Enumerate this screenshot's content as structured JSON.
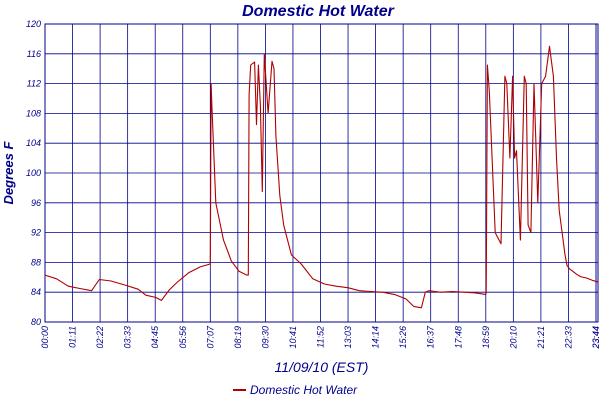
{
  "chart_data": {
    "type": "line",
    "title": "Domestic Hot Water",
    "xlabel": "11/09/10 (EST)",
    "ylabel": "Degrees F",
    "ylim": [
      80,
      120
    ],
    "y_ticks": [
      80,
      84,
      88,
      92,
      96,
      100,
      104,
      108,
      112,
      116,
      120
    ],
    "x_range_hours": [
      0,
      23.75
    ],
    "x_tick_labels": [
      "00:00",
      "01:11",
      "02:22",
      "03:33",
      "04:45",
      "05:56",
      "07:07",
      "08:19",
      "09:30",
      "10:41",
      "11:52",
      "13:03",
      "14:14",
      "15:26",
      "16:37",
      "17:48",
      "18:59",
      "20:10",
      "21:21",
      "22:33",
      "23:44",
      "23:44"
    ],
    "grid": true,
    "legend_position": "bottom-center",
    "series": [
      {
        "name": "Domestic Hot Water",
        "color": "#b00000",
        "x": [
          "00:00",
          "00:30",
          "01:00",
          "01:30",
          "02:00",
          "02:20",
          "02:50",
          "03:30",
          "04:00",
          "04:20",
          "04:45",
          "05:00",
          "05:20",
          "05:40",
          "06:10",
          "06:40",
          "07:00",
          "07:06",
          "07:08",
          "07:10",
          "07:20",
          "07:40",
          "08:00",
          "08:20",
          "08:40",
          "08:44",
          "08:46",
          "08:50",
          "09:00",
          "09:05",
          "09:10",
          "09:15",
          "09:20",
          "09:25",
          "09:35",
          "09:45",
          "09:50",
          "09:55",
          "10:05",
          "10:15",
          "10:35",
          "11:00",
          "11:30",
          "12:00",
          "12:30",
          "13:00",
          "13:30",
          "14:00",
          "14:30",
          "15:00",
          "15:30",
          "15:50",
          "16:10",
          "16:20",
          "16:30",
          "16:45",
          "17:00",
          "17:30",
          "18:00",
          "18:30",
          "18:55",
          "18:57",
          "19:00",
          "19:05",
          "19:20",
          "19:35",
          "19:45",
          "19:50",
          "19:58",
          "20:05",
          "20:10",
          "20:15",
          "20:25",
          "20:35",
          "20:40",
          "20:45",
          "20:52",
          "21:00",
          "21:10",
          "21:20",
          "21:30",
          "21:40",
          "21:50",
          "21:58",
          "22:05",
          "22:15",
          "22:20",
          "22:25",
          "22:32",
          "22:40",
          "22:50",
          "23:00",
          "23:15",
          "23:30",
          "23:44"
        ],
        "values": [
          86.3,
          85.8,
          84.8,
          84.5,
          84.2,
          85.7,
          85.5,
          84.9,
          84.4,
          83.6,
          83.3,
          82.9,
          84.3,
          85.3,
          86.6,
          87.4,
          87.7,
          87.8,
          112,
          109,
          96,
          91,
          88.2,
          86.8,
          86.3,
          86.3,
          110.5,
          114.5,
          114.9,
          106.5,
          114.5,
          109,
          97.5,
          116,
          108,
          115,
          114,
          105,
          97,
          93,
          89,
          87.8,
          85.8,
          85.1,
          84.8,
          84.6,
          84.2,
          84.1,
          84.0,
          83.7,
          83.1,
          82.1,
          81.9,
          84.0,
          84.2,
          84.1,
          84.0,
          84.1,
          84.0,
          83.9,
          83.7,
          83.9,
          114.5,
          111,
          92,
          90.5,
          113,
          112,
          102,
          113,
          102,
          103,
          91,
          113,
          112,
          93,
          92,
          112,
          96,
          112,
          113,
          117,
          113,
          102,
          95,
          91,
          89,
          87.6,
          87.1,
          86.8,
          86.4,
          86.1,
          85.9,
          85.6,
          85.4
        ]
      }
    ]
  }
}
